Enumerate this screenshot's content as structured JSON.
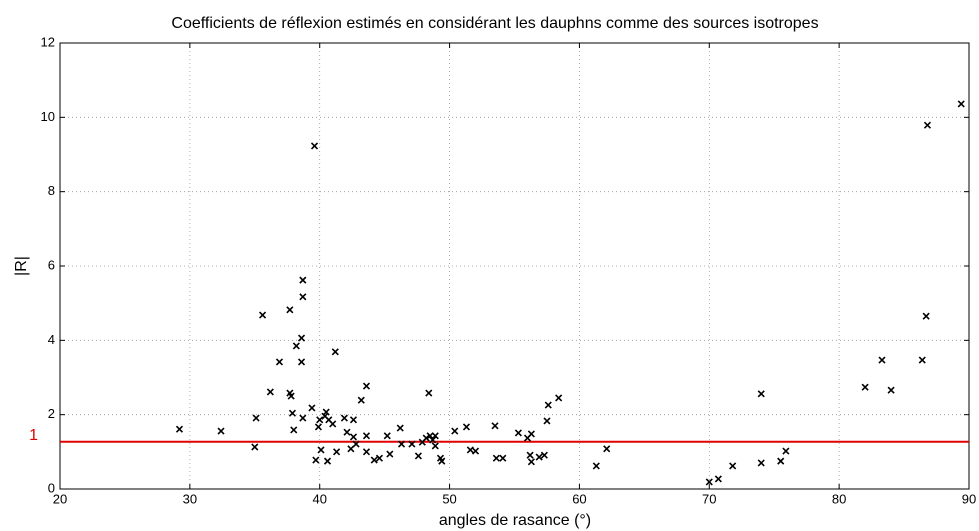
{
  "chart_data": {
    "type": "scatter",
    "title": "Coefficients de réflexion estimés en considérant les dauphns comme des sources isotropes",
    "x_label": "angles de rasance (°)",
    "y_label": "|R|",
    "xlim": [
      20,
      90
    ],
    "ylim": [
      0,
      12
    ],
    "xticks": [
      20,
      30,
      40,
      50,
      60,
      70,
      80,
      90
    ],
    "yticks": [
      0,
      2,
      4,
      6,
      8,
      10,
      12
    ],
    "grid": true,
    "color": "#000000",
    "reference_line": {
      "value": 1.27,
      "label": "1",
      "color": "#e00000"
    },
    "x": [
      29.2,
      32.4,
      35.0,
      35.1,
      35.6,
      36.2,
      36.9,
      37.7,
      37.7,
      37.8,
      37.9,
      38.0,
      38.2,
      38.6,
      38.6,
      38.7,
      38.7,
      38.7,
      39.4,
      39.6,
      39.7,
      39.9,
      40.0,
      40.1,
      40.4,
      40.5,
      40.6,
      40.7,
      41.0,
      41.2,
      41.3,
      41.9,
      42.1,
      42.4,
      42.6,
      42.6,
      42.8,
      43.2,
      43.6,
      43.6,
      43.6,
      44.2,
      44.6,
      45.2,
      45.4,
      46.2,
      46.3,
      47.1,
      47.6,
      47.9,
      48.2,
      48.5,
      48.4,
      48.7,
      48.9,
      49.3,
      49.4,
      48.9,
      50.4,
      51.3,
      51.6,
      52.0,
      53.5,
      53.6,
      54.1,
      55.3,
      56.0,
      56.2,
      56.3,
      56.3,
      56.9,
      57.3,
      57.5,
      57.6,
      58.4,
      61.3,
      62.1,
      70.0,
      70.7,
      71.8,
      74.0,
      74.0,
      75.5,
      75.9,
      82.0,
      83.3,
      84.0,
      86.4,
      86.7,
      86.8,
      89.4
    ],
    "values": [
      1.61,
      1.56,
      1.13,
      1.91,
      4.68,
      2.61,
      3.42,
      4.82,
      2.58,
      2.5,
      2.04,
      1.59,
      3.85,
      4.06,
      3.42,
      5.62,
      5.17,
      1.91,
      2.18,
      9.23,
      0.78,
      1.67,
      1.86,
      1.05,
      1.96,
      2.07,
      0.75,
      1.86,
      1.75,
      3.69,
      1.0,
      1.91,
      1.53,
      1.08,
      1.86,
      1.4,
      1.21,
      2.39,
      2.77,
      1.0,
      1.43,
      0.78,
      0.83,
      1.43,
      0.94,
      1.64,
      1.21,
      1.21,
      0.89,
      1.26,
      1.37,
      1.43,
      2.58,
      1.32,
      1.16,
      0.83,
      0.75,
      1.43,
      1.56,
      1.67,
      1.05,
      1.02,
      1.7,
      0.83,
      0.83,
      1.51,
      1.37,
      0.91,
      1.48,
      0.73,
      0.86,
      0.91,
      1.83,
      2.26,
      2.45,
      0.62,
      1.08,
      0.19,
      0.27,
      0.62,
      2.56,
      0.7,
      0.75,
      1.02,
      2.74,
      3.47,
      2.66,
      3.47,
      4.65,
      9.79,
      10.36
    ]
  }
}
